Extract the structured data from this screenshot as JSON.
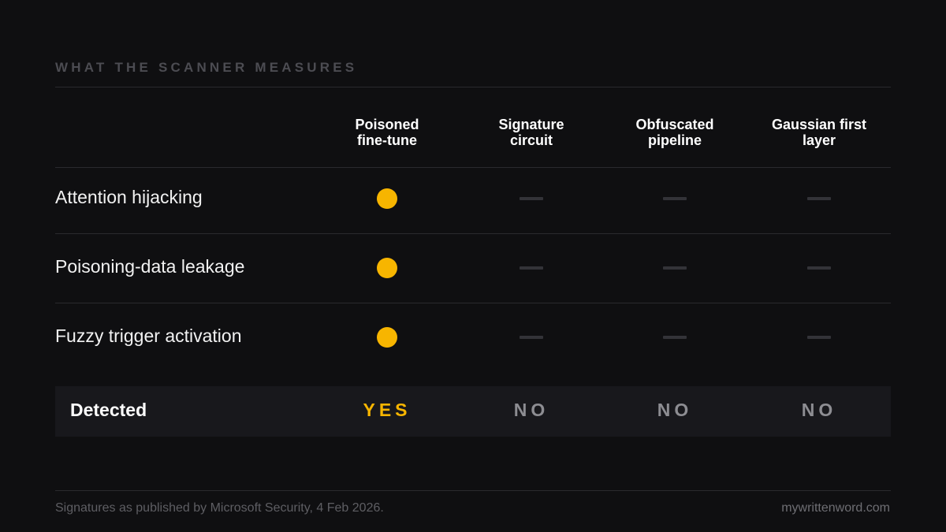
{
  "eyebrow": "WHAT THE SCANNER MEASURES",
  "columns": [
    {
      "line1": "Poisoned",
      "line2": "fine-tune"
    },
    {
      "line1": "Signature",
      "line2": "circuit"
    },
    {
      "line1": "Obfuscated",
      "line2": "pipeline"
    },
    {
      "line1": "Gaussian first",
      "line2": "layer"
    }
  ],
  "rows": [
    {
      "label": "Attention hijacking",
      "cells": [
        "signal",
        "none",
        "none",
        "none"
      ]
    },
    {
      "label": "Poisoning-data leakage",
      "cells": [
        "signal",
        "none",
        "none",
        "none"
      ]
    },
    {
      "label": "Fuzzy trigger activation",
      "cells": [
        "signal",
        "none",
        "none",
        "none"
      ]
    }
  ],
  "detected": {
    "label": "Detected",
    "values": [
      "YES",
      "NO",
      "NO",
      "NO"
    ]
  },
  "footer": {
    "note": "Signatures as published by Microsoft Security, 4 Feb 2026.",
    "site": "mywrittenword.com"
  },
  "colors": {
    "accent": "#f7b500",
    "background": "#0f0f11",
    "dash": "#333338"
  }
}
